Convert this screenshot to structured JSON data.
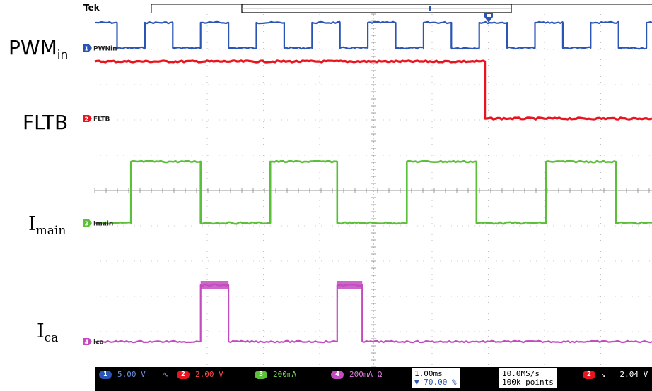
{
  "brand": "Tek",
  "labels": {
    "pwm_main": "PWM",
    "pwm_sub": "in",
    "fltb": "FLTB",
    "imain_main": "I",
    "imain_sub": "main",
    "ica_main": "I",
    "ica_sub": "ca"
  },
  "colors": {
    "ch1": "#2a55b5",
    "ch2": "#e8141e",
    "ch3": "#5cbf3a",
    "ch4": "#c34bc0",
    "grid": "#9a9a9a",
    "status_bg": "#000000"
  },
  "chart_data": {
    "type": "line",
    "title": "",
    "xlabel": "",
    "ylabel": "",
    "x_unit": "ms",
    "xlim": [
      0,
      10
    ],
    "grid": true,
    "series": [
      {
        "name": "PWNin",
        "channel": "1",
        "marker_label": "1",
        "scale": "5.00 V",
        "points": [
          [
            0,
            1
          ],
          [
            0.4,
            1
          ],
          [
            0.4,
            0
          ],
          [
            0.9,
            0
          ],
          [
            0.9,
            1
          ],
          [
            1.4,
            1
          ],
          [
            1.4,
            0
          ],
          [
            1.9,
            0
          ],
          [
            1.9,
            1
          ],
          [
            2.4,
            1
          ],
          [
            2.4,
            0
          ],
          [
            2.9,
            0
          ],
          [
            2.9,
            1
          ],
          [
            3.4,
            1
          ],
          [
            3.4,
            0
          ],
          [
            3.9,
            0
          ],
          [
            3.9,
            1
          ],
          [
            4.4,
            1
          ],
          [
            4.4,
            0
          ],
          [
            4.9,
            0
          ],
          [
            4.9,
            1
          ],
          [
            5.4,
            1
          ],
          [
            5.4,
            0
          ],
          [
            5.9,
            0
          ],
          [
            5.9,
            1
          ],
          [
            6.4,
            1
          ],
          [
            6.4,
            0
          ],
          [
            6.9,
            0
          ],
          [
            6.9,
            1
          ],
          [
            7.4,
            1
          ],
          [
            7.4,
            0
          ],
          [
            7.9,
            0
          ],
          [
            7.9,
            1
          ],
          [
            8.4,
            1
          ],
          [
            8.4,
            0
          ],
          [
            8.9,
            0
          ],
          [
            8.9,
            1
          ],
          [
            9.4,
            1
          ],
          [
            9.4,
            0
          ],
          [
            9.9,
            0
          ],
          [
            9.9,
            1
          ],
          [
            10,
            1
          ]
        ]
      },
      {
        "name": "FLTB",
        "channel": "2",
        "marker_label": "2",
        "scale": "2.00 V",
        "points": [
          [
            0,
            1
          ],
          [
            7.0,
            1
          ],
          [
            7.0,
            0
          ],
          [
            10,
            0
          ]
        ]
      },
      {
        "name": "Imain",
        "channel": "3",
        "marker_label": "3",
        "scale": "200mA",
        "points": [
          [
            0,
            0
          ],
          [
            0.65,
            0
          ],
          [
            0.65,
            1
          ],
          [
            1.9,
            1
          ],
          [
            1.9,
            0
          ],
          [
            3.15,
            0
          ],
          [
            3.15,
            1
          ],
          [
            4.35,
            1
          ],
          [
            4.35,
            0
          ],
          [
            5.6,
            0
          ],
          [
            5.6,
            1
          ],
          [
            6.85,
            1
          ],
          [
            6.85,
            0
          ],
          [
            8.1,
            0
          ],
          [
            8.1,
            1
          ],
          [
            9.35,
            1
          ],
          [
            9.35,
            0
          ],
          [
            10,
            0
          ]
        ]
      },
      {
        "name": "Ica",
        "channel": "4",
        "marker_label": "4",
        "scale": "200mA Ω",
        "points": [
          [
            0,
            0
          ],
          [
            1.9,
            0
          ],
          [
            1.9,
            1
          ],
          [
            2.4,
            1
          ],
          [
            2.4,
            0
          ],
          [
            4.35,
            0
          ],
          [
            4.35,
            1
          ],
          [
            4.8,
            1
          ],
          [
            4.8,
            0
          ],
          [
            10,
            0
          ]
        ]
      }
    ]
  },
  "status_bar": {
    "ch1_scale": "5.00 V",
    "ch2_scale": "2.00 V",
    "ch3_scale": "200mA",
    "ch4_scale": "200mA Ω",
    "timebase": "1.00ms",
    "trigger_position": "70.00 %",
    "sample_rate": "10.0MS/s",
    "record_length": "100k points",
    "trigger_channel": "2",
    "trigger_level": "2.04 V"
  }
}
